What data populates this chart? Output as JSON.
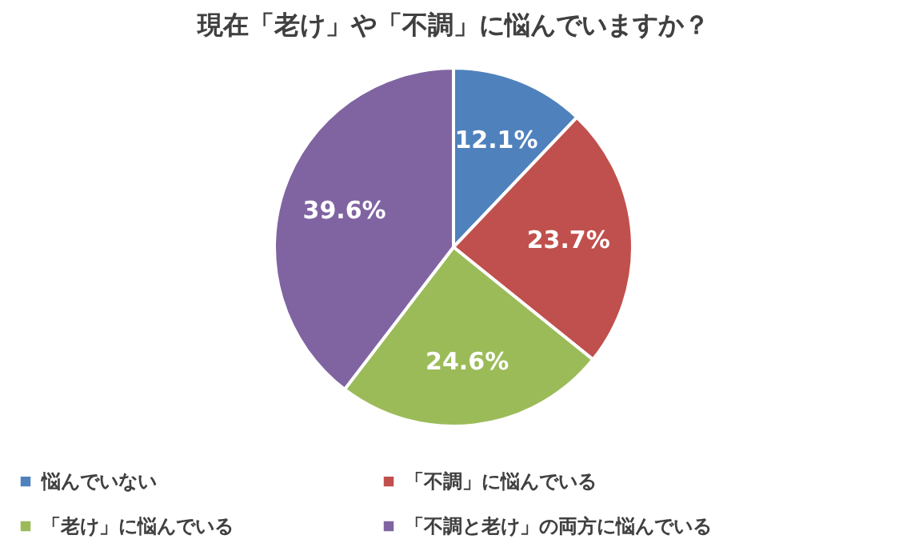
{
  "chart_data": {
    "type": "pie",
    "title": "現在「老け」や「不調」に悩んでいますか？",
    "categories": [
      "悩んでいない",
      "「不調」に悩んでいる",
      "「老け」に悩んでいる",
      "「不調と老け」の両方に悩んでいる"
    ],
    "values": [
      12.1,
      23.7,
      24.6,
      39.6
    ],
    "colors": [
      "#4f81bd",
      "#c0504d",
      "#9bbb59",
      "#8064a2"
    ],
    "value_labels": [
      "12.1%",
      "23.7%",
      "24.6%",
      "39.6%"
    ],
    "legend": "bottom"
  }
}
